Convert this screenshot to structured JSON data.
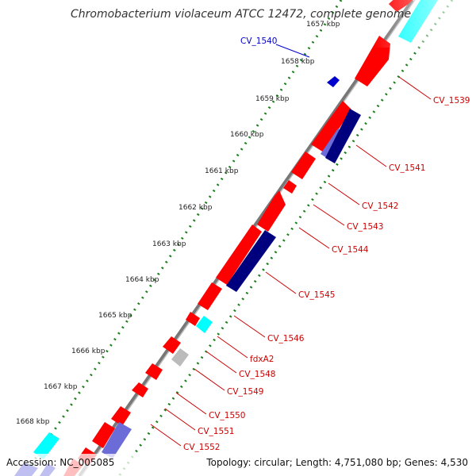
{
  "title": "Chromobacterium violaceum ATCC 12472, complete genome",
  "footer": {
    "accession": "Accession: NC_005085",
    "topology": "Topology: circular; Length: 4,751,080 bp; Genes: 4,530"
  },
  "colors": {
    "forward_cds": "#ff0000",
    "reverse_cds_dark": "#00007f",
    "reverse_cds_light": "#6c6cd8",
    "cyan_feature": "#00ffff",
    "grey_feature": "#bbbbbb",
    "backbone": "#777777",
    "tick_dots": "#1a7f1a",
    "label_red": "#cc0000",
    "label_blue": "#0000cc"
  },
  "tick_labels": [
    "1657 kbp",
    "1658 kbp",
    "1659 kbp",
    "1660 kbp",
    "1661 kbp",
    "1662 kbp",
    "1663 kbp",
    "1664 kbp",
    "1665 kbp",
    "1666 kbp",
    "1667 kbp",
    "1668 kbp"
  ],
  "gene_labels": [
    "CV_1540",
    "CV_1539",
    "CV_1541",
    "CV_1542",
    "CV_1543",
    "CV_1544",
    "CV_1545",
    "CV_1546",
    "fdxA2",
    "CV_1548",
    "CV_1549",
    "CV_1550",
    "CV_1551",
    "CV_1552"
  ]
}
